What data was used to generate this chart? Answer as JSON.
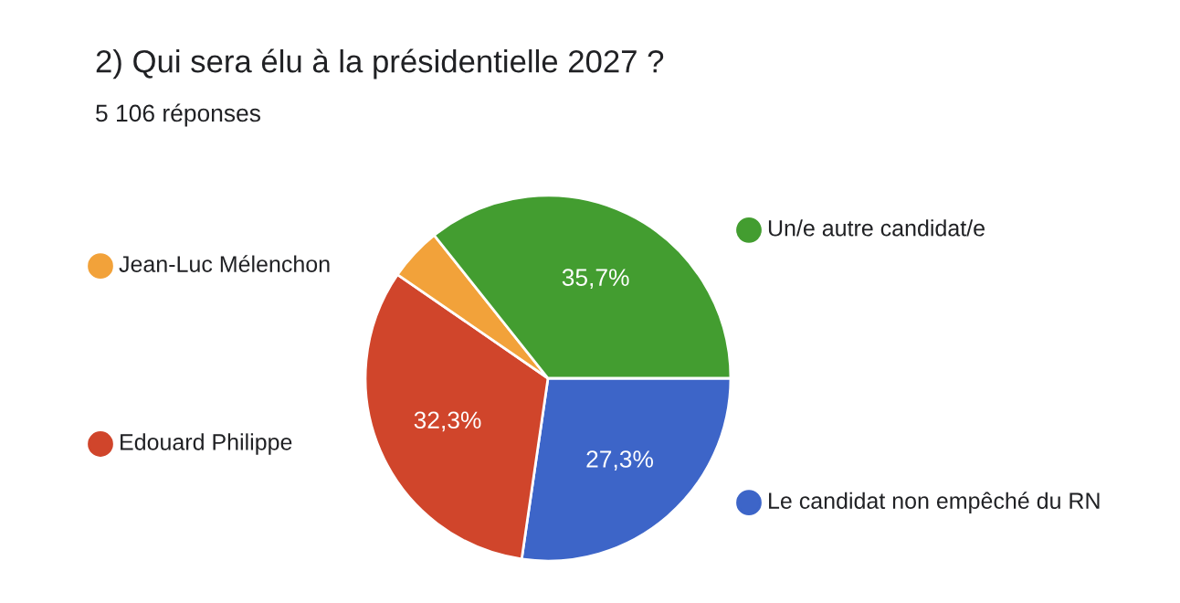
{
  "chart_data": {
    "type": "pie",
    "title": "2) Qui sera élu à la présidentielle 2027 ?",
    "subtitle": "5 106 réponses",
    "categories": [
      "Le candidat non empêché du RN",
      "Edouard Philippe",
      "Jean-Luc Mélenchon",
      "Un/e autre candidat/e"
    ],
    "values": [
      27.3,
      32.3,
      4.7,
      35.7
    ],
    "colors": [
      "#3d65c8",
      "#d0452b",
      "#f2a23a",
      "#439d30"
    ],
    "value_labels": [
      "27,3%",
      "32,3%",
      null,
      "35,7%"
    ],
    "legend": "right"
  }
}
